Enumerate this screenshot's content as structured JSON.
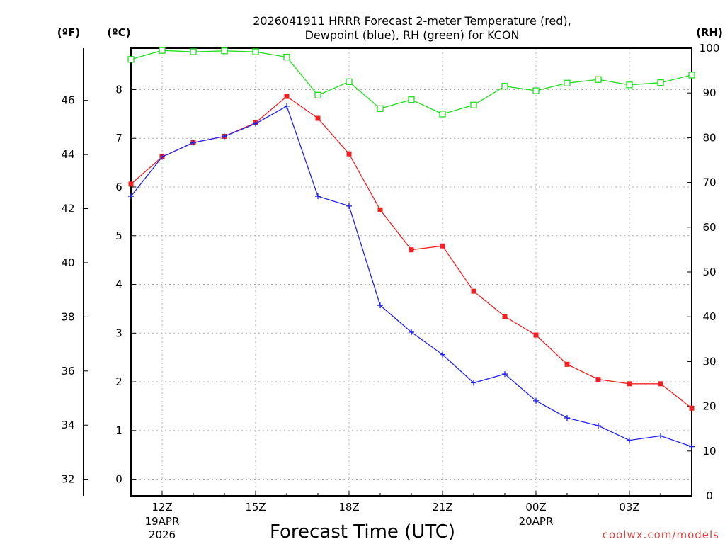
{
  "chart_data": {
    "type": "line",
    "title_line1": "2026041911 HRRR Forecast 2-meter Temperature (red),",
    "title_line2": "Dewpoint (blue), RH (green) for KCON",
    "xlabel": "Forecast Time (UTC)",
    "credit": "coolwx.com/models",
    "units": {
      "fahrenheit": "(ºF)",
      "celsius": "(ºC)",
      "rh": "(RH)"
    },
    "x_hours": [
      11,
      12,
      13,
      14,
      15,
      16,
      17,
      18,
      19,
      20,
      21,
      22,
      23,
      24,
      25,
      26,
      27,
      28,
      29
    ],
    "x_ticks": [
      {
        "hour": 12,
        "label": "12Z",
        "sub1": "19APR",
        "sub2": "2026"
      },
      {
        "hour": 15,
        "label": "15Z",
        "sub1": "",
        "sub2": ""
      },
      {
        "hour": 18,
        "label": "18Z",
        "sub1": "",
        "sub2": ""
      },
      {
        "hour": 21,
        "label": "21Z",
        "sub1": "",
        "sub2": ""
      },
      {
        "hour": 24,
        "label": "00Z",
        "sub1": "20APR",
        "sub2": ""
      },
      {
        "hour": 27,
        "label": "03Z",
        "sub1": "",
        "sub2": ""
      }
    ],
    "xlim": [
      11,
      29
    ],
    "celsius_axis": {
      "range": [
        -0.34,
        8.85
      ],
      "ticks": [
        0,
        1,
        2,
        3,
        4,
        5,
        6,
        7,
        8
      ]
    },
    "fahrenheit_axis": {
      "ticks": [
        32,
        34,
        36,
        38,
        40,
        42,
        44,
        46
      ]
    },
    "rh_axis": {
      "range": [
        0,
        100
      ],
      "ticks": [
        0,
        10,
        20,
        30,
        40,
        50,
        60,
        70,
        80,
        90,
        100
      ]
    },
    "series": [
      {
        "name": "Temperature",
        "unit": "C",
        "color": "#ee2222",
        "marker": "filled-square",
        "values": [
          6.06,
          6.62,
          6.91,
          7.04,
          7.32,
          7.86,
          7.41,
          6.68,
          5.53,
          4.71,
          4.79,
          3.86,
          3.34,
          2.96,
          2.36,
          2.05,
          1.96,
          1.96,
          1.46
        ]
      },
      {
        "name": "Dewpoint",
        "unit": "C",
        "color": "#2222ee",
        "marker": "plus",
        "values": [
          5.81,
          6.62,
          6.91,
          7.04,
          7.3,
          7.66,
          5.81,
          5.61,
          3.57,
          3.02,
          2.56,
          1.98,
          2.16,
          1.61,
          1.26,
          1.1,
          0.8,
          0.89,
          0.67
        ]
      },
      {
        "name": "RH",
        "unit": "%",
        "color": "#22dd22",
        "marker": "open-square",
        "values": [
          97.5,
          99.5,
          99.2,
          99.4,
          99.2,
          98.0,
          89.5,
          92.5,
          86.5,
          88.5,
          85.3,
          87.3,
          91.5,
          90.5,
          92.2,
          93.0,
          91.8,
          92.3,
          94.0
        ]
      }
    ]
  }
}
